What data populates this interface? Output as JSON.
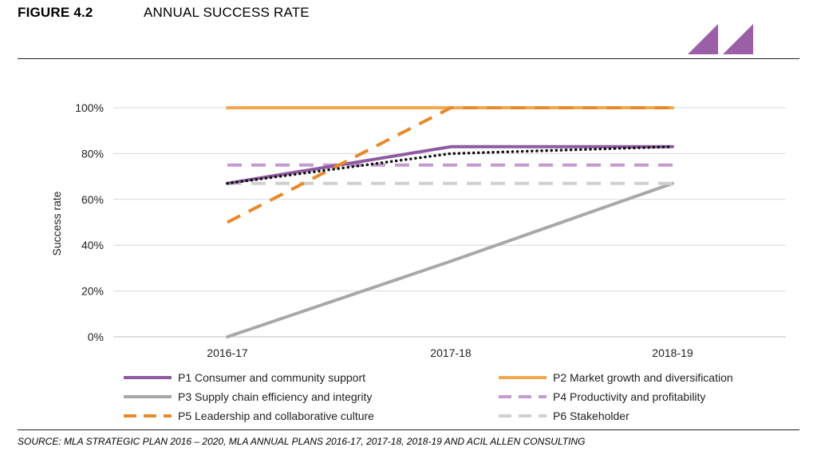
{
  "figure": {
    "number": "FIGURE 4.2",
    "title": "ANNUAL SUCCESS RATE"
  },
  "source": "SOURCE: MLA STRATEGIC PLAN 2016 – 2020, MLA ANNUAL PLANS 2016-17, 2017-18, 2018-19 AND ACIL ALLEN CONSULTING",
  "logo": {
    "icon": "brand-chevrons-icon",
    "color": "#9b5fa8"
  },
  "chart_data": {
    "type": "line",
    "title": "",
    "xlabel": "",
    "ylabel": "Success rate",
    "categories": [
      "2016-17",
      "2017-18",
      "2018-19"
    ],
    "ylim": [
      0,
      100
    ],
    "yticks": [
      0,
      20,
      40,
      60,
      80,
      100
    ],
    "ytick_labels": [
      "0%",
      "20%",
      "40%",
      "60%",
      "80%",
      "100%"
    ],
    "grid": true,
    "legend_position": "bottom",
    "series": [
      {
        "name": "P1 Consumer and community support",
        "values": [
          67,
          83,
          83
        ],
        "color": "#8e5aa0",
        "style": "solid"
      },
      {
        "name": "P2 Market growth and diversification",
        "values": [
          100,
          100,
          100
        ],
        "color": "#f2a84a",
        "style": "solid"
      },
      {
        "name": "P3 Supply chain efficiency and integrity",
        "values": [
          0,
          33,
          67
        ],
        "color": "#a8a8a8",
        "style": "solid"
      },
      {
        "name": "P4 Productivity and profitability",
        "values": [
          75,
          75,
          75
        ],
        "color": "#c39bcf",
        "style": "dashed"
      },
      {
        "name": "P5 Leadership and collaborative culture",
        "values": [
          50,
          100,
          100
        ],
        "color": "#e8892a",
        "style": "dashed"
      },
      {
        "name": "P6 Stakeholder",
        "values": [
          67,
          67,
          67
        ],
        "color": "#cfcfcf",
        "style": "dashed"
      }
    ],
    "trend": {
      "values": [
        67,
        80,
        83
      ],
      "color": "#111111",
      "style": "dotted"
    }
  }
}
